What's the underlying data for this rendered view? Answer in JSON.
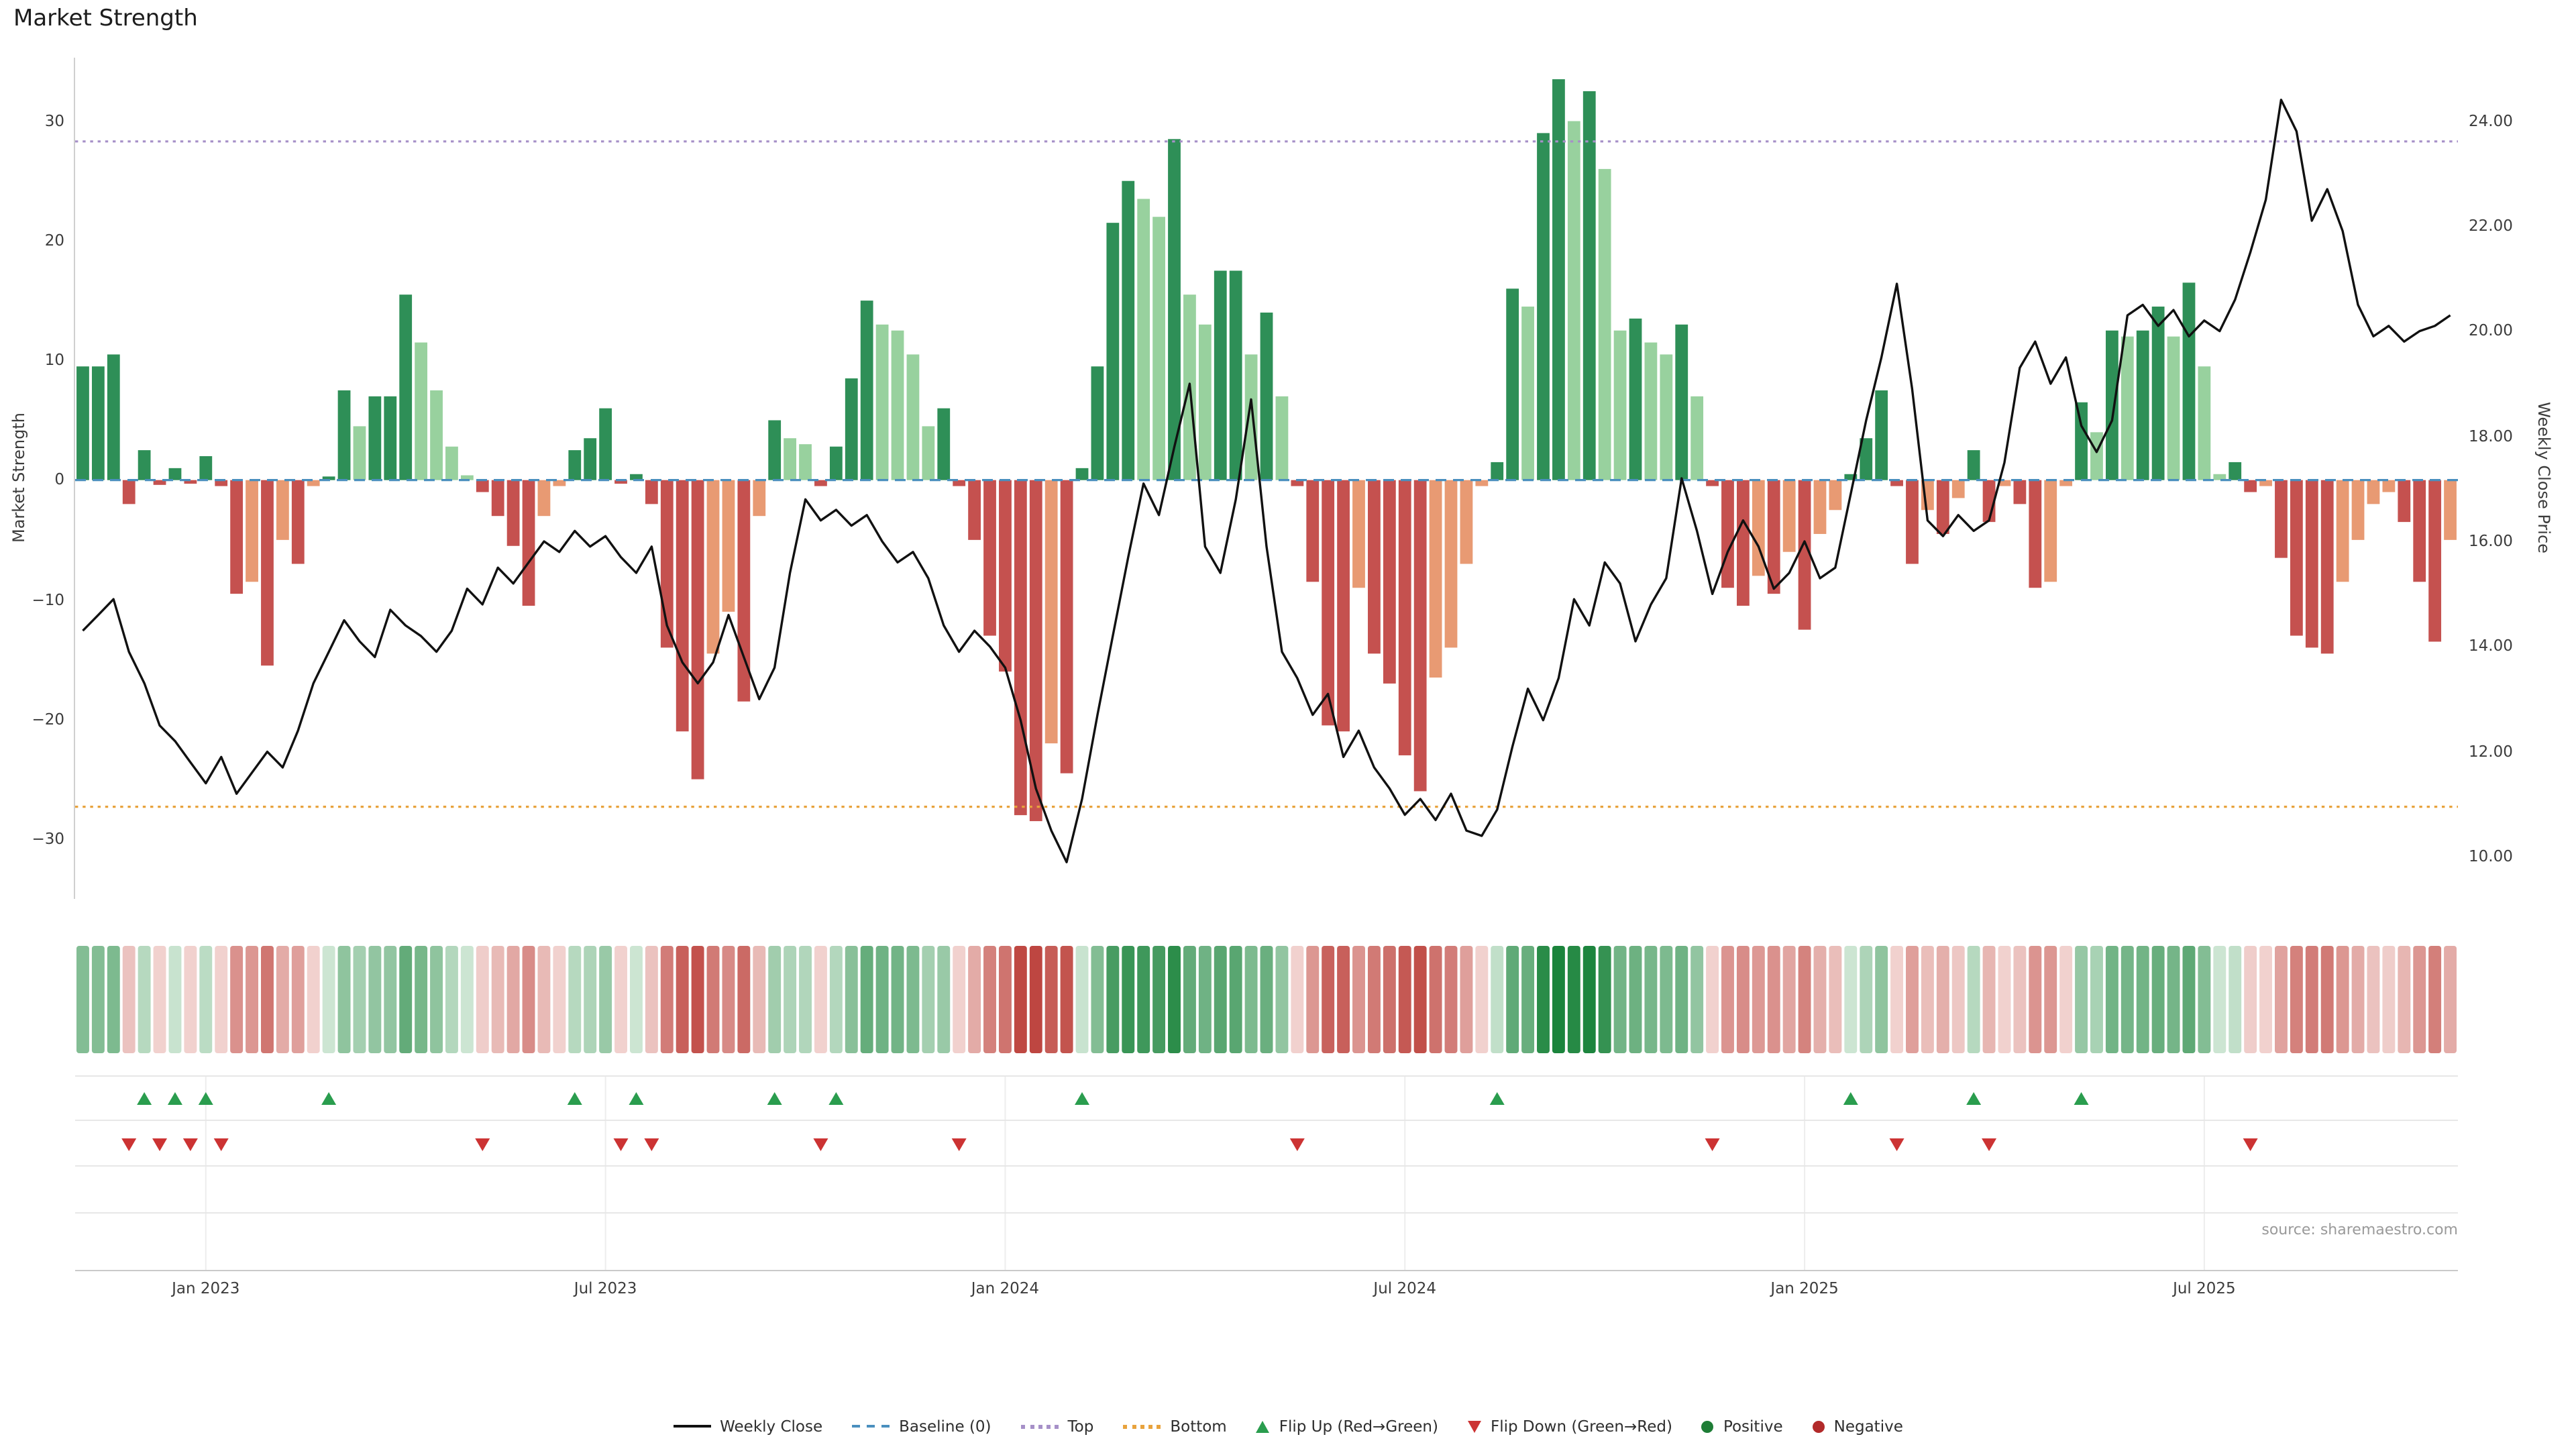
{
  "chart_data": {
    "type": "bar+line",
    "title": "Market Strength",
    "ylabel_left": "Market Strength",
    "ylabel_right": "Weekly Close Price",
    "source_note": "source: sharemaestro.com",
    "x_start_date": "2022-11-06",
    "x_step_days": 7,
    "n_slots": 155,
    "grid": "off",
    "legend_position": "bottom-center",
    "x_ticks": [
      {
        "week": 9,
        "label": "Jan 2023"
      },
      {
        "week": 35,
        "label": "Jul 2023"
      },
      {
        "week": 61,
        "label": "Jan 2024"
      },
      {
        "week": 87,
        "label": "Jul 2024"
      },
      {
        "week": 113,
        "label": "Jan 2025"
      },
      {
        "week": 139,
        "label": "Jul 2025"
      }
    ],
    "left_axis": {
      "range": [
        -35,
        35.3
      ],
      "ticks": [
        {
          "v": 30,
          "label": "30"
        },
        {
          "v": 20,
          "label": "20"
        },
        {
          "v": 10,
          "label": "10"
        },
        {
          "v": 0,
          "label": "0"
        },
        {
          "v": -10,
          "label": "−10"
        },
        {
          "v": -20,
          "label": "−20"
        },
        {
          "v": -30,
          "label": "−30"
        }
      ]
    },
    "right_axis": {
      "range": [
        9.2,
        25.2
      ],
      "ticks": [
        {
          "v": 24,
          "label": "24.00"
        },
        {
          "v": 22,
          "label": "22.00"
        },
        {
          "v": 20,
          "label": "20.00"
        },
        {
          "v": 18,
          "label": "18.00"
        },
        {
          "v": 16,
          "label": "16.00"
        },
        {
          "v": 14,
          "label": "14.00"
        },
        {
          "v": 12,
          "label": "12.00"
        },
        {
          "v": 10,
          "label": "10.00"
        }
      ]
    },
    "series": [
      {
        "name": "Market Strength",
        "type": "bar",
        "axis": "left",
        "values": [
          9.5,
          9.5,
          10.5,
          -2,
          2.5,
          -0.4,
          1,
          -0.3,
          2,
          -0.5,
          -9.5,
          -8.5,
          -15.5,
          -5,
          -7,
          -0.5,
          0.3,
          7.5,
          4.5,
          7,
          7,
          15.5,
          11.5,
          7.5,
          2.8,
          0.4,
          -1,
          -3,
          -5.5,
          -10.5,
          -3,
          -0.5,
          2.5,
          3.5,
          6,
          -0.3,
          0.5,
          -2,
          -14,
          -21,
          -25,
          -14.5,
          -11,
          -18.5,
          -3,
          5,
          3.5,
          3,
          -0.5,
          2.8,
          8.5,
          15,
          13,
          12.5,
          10.5,
          4.5,
          6,
          -0.5,
          -5,
          -13,
          -16,
          -28,
          -28.5,
          -22,
          -24.5,
          1,
          9.5,
          21.5,
          25,
          23.5,
          22,
          28.5,
          15.5,
          13,
          17.5,
          17.5,
          10.5,
          14,
          7,
          -0.5,
          -8.5,
          -20.5,
          -21,
          -9,
          -14.5,
          -17,
          -23,
          -26,
          -16.5,
          -14,
          -7,
          -0.5,
          1.5,
          16,
          14.5,
          29,
          33.5,
          30,
          32.5,
          26,
          12.5,
          13.5,
          11.5,
          10.5,
          13,
          7,
          -0.5,
          -9,
          -10.5,
          -8,
          -9.5,
          -6,
          -12.5,
          -4.5,
          -2.5,
          0.5,
          3.5,
          7.5,
          -0.5,
          -7,
          -2.5,
          -4.5,
          -1.5,
          2.5,
          -3.5,
          -0.5,
          -2,
          -9,
          -8.5,
          -0.5,
          6.5,
          4,
          12.5,
          12,
          12.5,
          14.5,
          12,
          16.5,
          9.5,
          0.5,
          1.5,
          -1,
          -0.5,
          -6.5,
          -13,
          -14,
          -14.5,
          -8.5,
          -5,
          -2,
          -1,
          -3.5,
          -8.5,
          -13.5,
          -5
        ]
      },
      {
        "name": "Weekly Close",
        "type": "line",
        "axis": "right",
        "values": [
          14.3,
          14.6,
          14.9,
          13.9,
          13.3,
          12.5,
          12.2,
          11.8,
          11.4,
          11.9,
          11.2,
          11.6,
          12.0,
          11.7,
          12.4,
          13.3,
          13.9,
          14.5,
          14.1,
          13.8,
          14.7,
          14.4,
          14.2,
          13.9,
          14.3,
          15.1,
          14.8,
          15.5,
          15.2,
          15.6,
          16.0,
          15.8,
          16.2,
          15.9,
          16.1,
          15.7,
          15.4,
          15.9,
          14.4,
          13.7,
          13.3,
          13.7,
          14.6,
          13.8,
          13.0,
          13.6,
          15.4,
          16.8,
          16.4,
          16.6,
          16.3,
          16.5,
          16.0,
          15.6,
          15.8,
          15.3,
          14.4,
          13.9,
          14.3,
          14.0,
          13.6,
          12.6,
          11.3,
          10.5,
          9.9,
          11.1,
          12.7,
          14.2,
          15.7,
          17.1,
          16.5,
          17.8,
          19.0,
          15.9,
          15.4,
          16.8,
          18.7,
          15.9,
          13.9,
          13.4,
          12.7,
          13.1,
          11.9,
          12.4,
          11.7,
          11.3,
          10.8,
          11.1,
          10.7,
          11.2,
          10.5,
          10.4,
          10.9,
          12.1,
          13.2,
          12.6,
          13.4,
          14.9,
          14.4,
          15.6,
          15.2,
          14.1,
          14.8,
          15.3,
          17.2,
          16.2,
          15.0,
          15.8,
          16.4,
          15.9,
          15.1,
          15.4,
          16.0,
          15.3,
          15.5,
          16.9,
          18.3,
          19.5,
          20.9,
          18.9,
          16.4,
          16.1,
          16.5,
          16.2,
          16.4,
          17.5,
          19.3,
          19.8,
          19.0,
          19.5,
          18.2,
          17.7,
          18.3,
          20.3,
          20.5,
          20.1,
          20.4,
          19.9,
          20.2,
          20.0,
          20.6,
          21.5,
          22.5,
          24.4,
          23.8,
          22.1,
          22.7,
          21.9,
          20.5,
          19.9,
          20.1,
          19.8,
          20.0,
          20.1,
          20.3
        ]
      }
    ],
    "reference_lines": [
      {
        "name": "Baseline (0)",
        "value": 0,
        "axis": "left",
        "style": "dashed",
        "color": "#4a8fbe"
      },
      {
        "name": "Top",
        "value": 28.3,
        "axis": "left",
        "style": "dotted",
        "color": "#a690c8"
      },
      {
        "name": "Bottom",
        "value": -27.3,
        "axis": "left",
        "style": "dotted",
        "color": "#e8a33d"
      }
    ],
    "heatmap": {
      "derived_from": "Market Strength",
      "position": "below-main-chart"
    },
    "flip_markers": {
      "up_rule": "week where Market Strength flips from negative to positive",
      "down_rule": "week where Market Strength flips from positive to negative"
    }
  },
  "colors": {
    "bar_pos_strong": "#2e8f57",
    "bar_pos_weak": "#98d19e",
    "bar_neg_strong": "#c5514f",
    "bar_neg_weak": "#e89a73",
    "line": "#111111",
    "baseline": "#4a8fbe",
    "top": "#a690c8",
    "bottom": "#e8a33d",
    "flip_up": "#2a9d4e",
    "flip_down": "#cc3333",
    "positive_dot": "#1e7d36",
    "negative_dot": "#b22a2a",
    "spine": "#cfcfcf",
    "panel_grid": "#e7e7e7",
    "axis_text": "#3c3c3c"
  },
  "legend": {
    "items": [
      {
        "label": "Weekly Close",
        "swatch": "line",
        "color": "#111111"
      },
      {
        "label": "Baseline (0)",
        "swatch": "dashed-line",
        "color": "#4a8fbe"
      },
      {
        "label": "Top",
        "swatch": "dotted-line",
        "color": "#a690c8"
      },
      {
        "label": "Bottom",
        "swatch": "dotted-line",
        "color": "#e8a33d"
      },
      {
        "label": "Flip Up (Red→Green)",
        "swatch": "triangle-up",
        "color": "#2a9d4e"
      },
      {
        "label": "Flip Down (Green→Red)",
        "swatch": "triangle-down",
        "color": "#cc3333"
      },
      {
        "label": "Positive",
        "swatch": "dot",
        "color": "#1e7d36"
      },
      {
        "label": "Negative",
        "swatch": "dot",
        "color": "#b22a2a"
      }
    ]
  }
}
